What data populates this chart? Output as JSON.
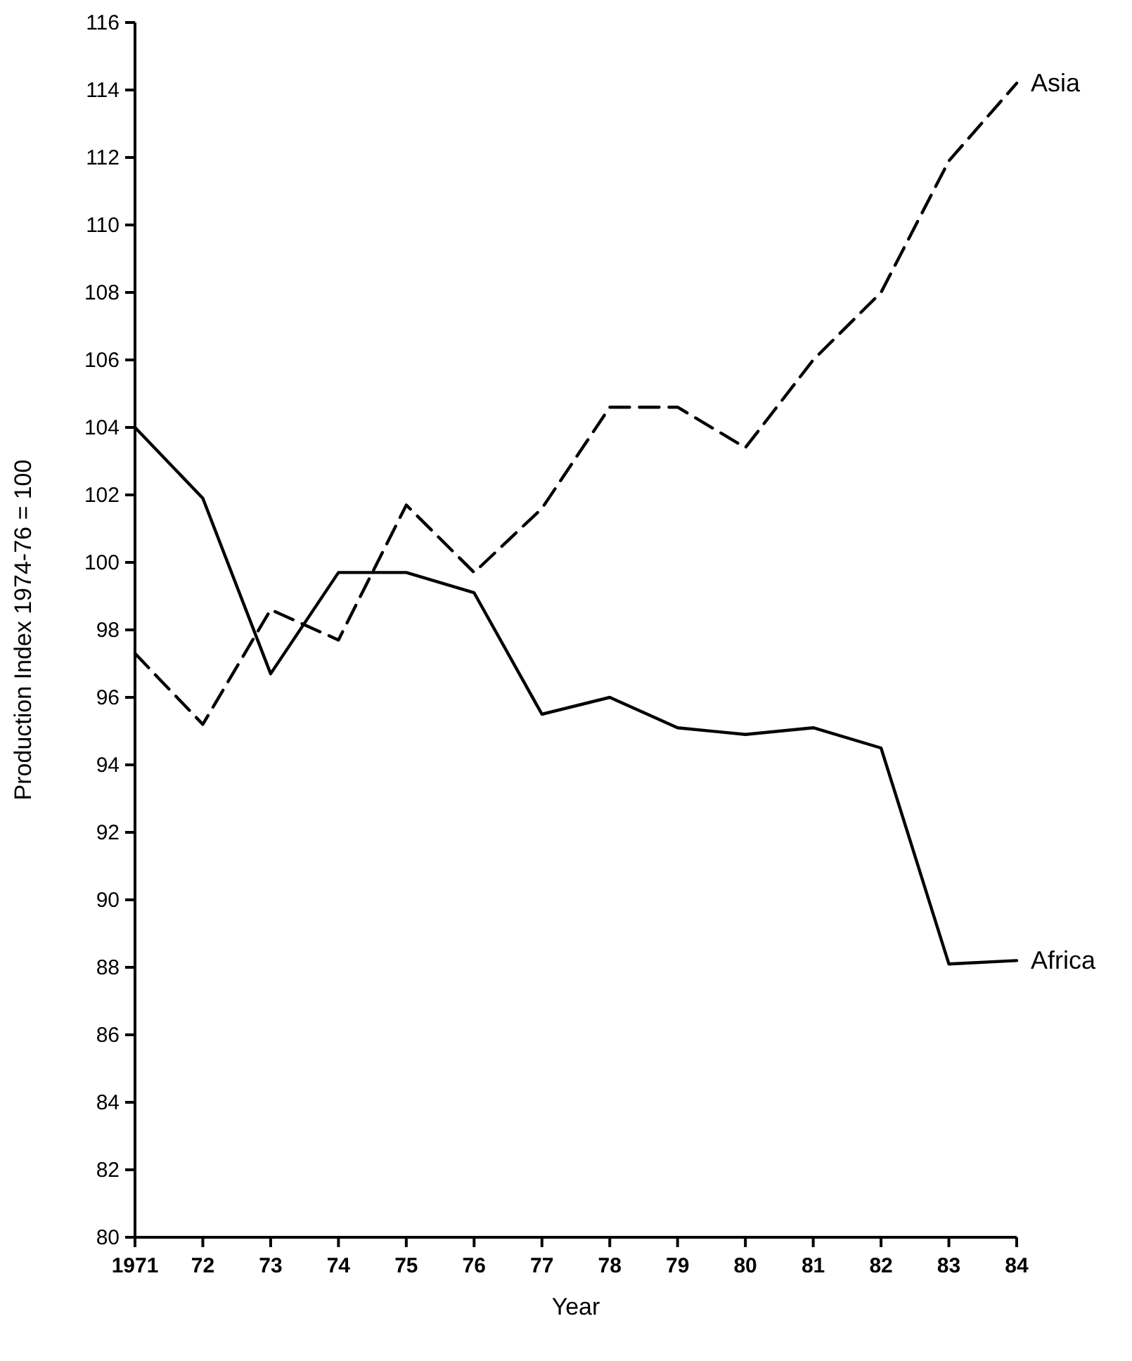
{
  "chart_data": {
    "type": "line",
    "xlabel": "Year",
    "ylabel": "Production Index 1974-76 = 100",
    "categories": [
      "1971",
      "72",
      "73",
      "74",
      "75",
      "76",
      "77",
      "78",
      "79",
      "80",
      "81",
      "82",
      "83",
      "84"
    ],
    "ylim": [
      80,
      116
    ],
    "yticks": [
      80,
      82,
      84,
      86,
      88,
      90,
      92,
      94,
      96,
      98,
      100,
      102,
      104,
      106,
      108,
      110,
      112,
      114,
      116
    ],
    "grid": false,
    "legend": false,
    "marker": "none",
    "series": [
      {
        "name": "Asia",
        "color": "#000000",
        "line_style": "dashed",
        "values": [
          97.3,
          95.2,
          98.6,
          97.7,
          101.7,
          99.7,
          101.6,
          104.6,
          104.6,
          103.4,
          106.0,
          108.0,
          111.9,
          114.2
        ]
      },
      {
        "name": "Africa",
        "color": "#000000",
        "line_style": "solid",
        "values": [
          104.0,
          101.9,
          96.7,
          99.7,
          99.7,
          99.1,
          95.5,
          96.0,
          95.1,
          94.9,
          95.1,
          94.5,
          88.1,
          88.2
        ]
      }
    ]
  }
}
